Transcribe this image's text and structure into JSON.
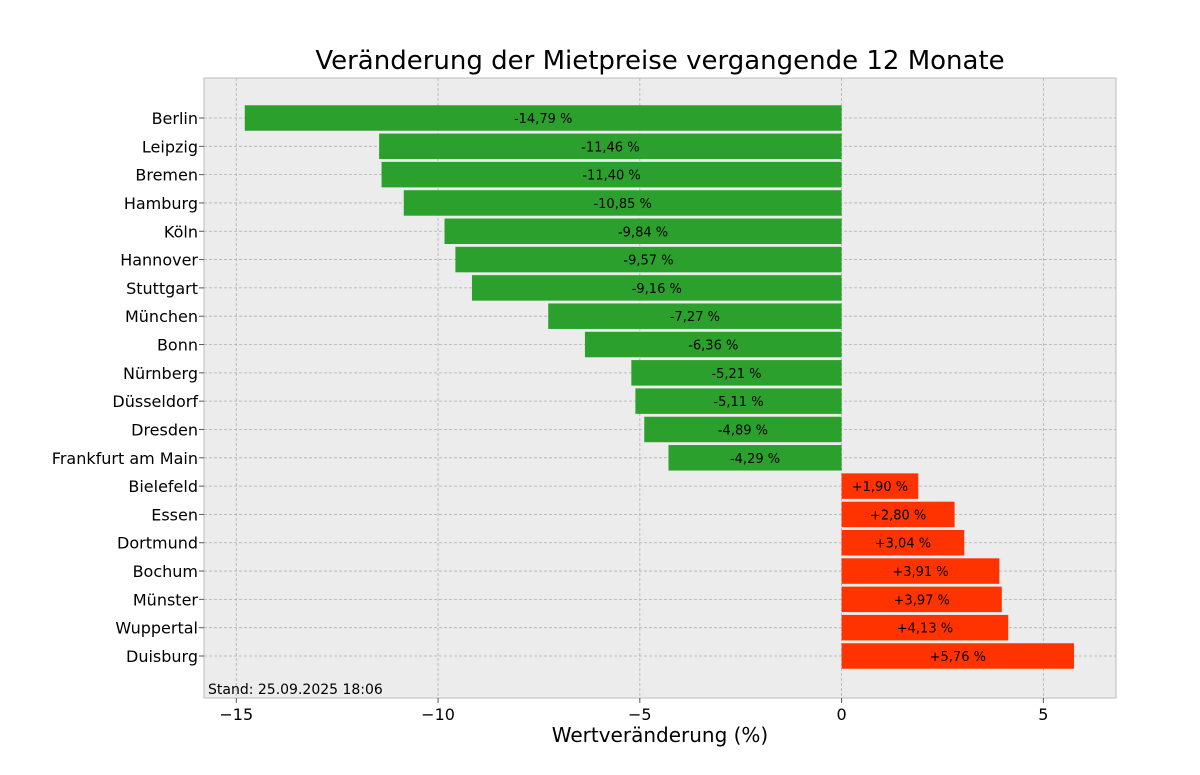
{
  "chart_data": {
    "type": "bar",
    "orientation": "horizontal",
    "title": "Veränderung der Mietpreise vergangende 12 Monate",
    "xlabel": "Wertveränderung (%)",
    "ylabel": "",
    "xlim": [
      -15.8,
      6.8
    ],
    "xticks": [
      -15,
      -10,
      -5,
      0,
      5
    ],
    "xtick_labels": [
      "−15",
      "−10",
      "−5",
      "0",
      "5"
    ],
    "grid": true,
    "categories": [
      "Berlin",
      "Leipzig",
      "Bremen",
      "Hamburg",
      "Köln",
      "Hannover",
      "Stuttgart",
      "München",
      "Bonn",
      "Nürnberg",
      "Düsseldorf",
      "Dresden",
      "Frankfurt am Main",
      "Bielefeld",
      "Essen",
      "Dortmund",
      "Bochum",
      "Münster",
      "Wuppertal",
      "Duisburg"
    ],
    "values": [
      -14.79,
      -11.46,
      -11.4,
      -10.85,
      -9.84,
      -9.57,
      -9.16,
      -7.27,
      -6.36,
      -5.21,
      -5.11,
      -4.89,
      -4.29,
      1.9,
      2.8,
      3.04,
      3.91,
      3.97,
      4.13,
      5.76
    ],
    "data_labels": [
      "-14,79 %",
      "-11,46 %",
      "-11,40 %",
      "-10,85 %",
      "-9,84 %",
      "-9,57 %",
      "-9,16 %",
      "-7,27 %",
      "-6,36 %",
      "-5,21 %",
      "-5,11 %",
      "-4,89 %",
      "-4,29 %",
      "+1,90 %",
      "+2,80 %",
      "+3,04 %",
      "+3,91 %",
      "+3,97 %",
      "+4,13 %",
      "+5,76 %"
    ],
    "colors": {
      "negative": "#2ca02c",
      "positive": "#ff3300",
      "background": "#ececec",
      "grid": "#b0b0b0"
    },
    "annotation": "Stand: 25.09.2025 18:06"
  }
}
